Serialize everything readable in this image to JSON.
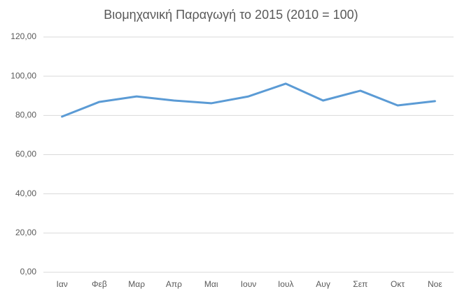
{
  "chart_data": {
    "type": "line",
    "title": "Βιομηχανική Παραγωγή το 2015 (2010 = 100)",
    "categories": [
      "Ιαν",
      "Φεβ",
      "Μαρ",
      "Απρ",
      "Μαι",
      "Ιουν",
      "Ιουλ",
      "Αυγ",
      "Σεπ",
      "Οκτ",
      "Νοε"
    ],
    "values": [
      79.4,
      86.9,
      89.7,
      87.6,
      86.2,
      89.7,
      96.2,
      87.6,
      92.6,
      85.1,
      87.3
    ],
    "color": "#5b9bd5",
    "ylim": [
      0,
      120
    ],
    "yticks": [
      {
        "value": 0,
        "label": "0,00"
      },
      {
        "value": 20,
        "label": "20,00"
      },
      {
        "value": 40,
        "label": "40,00"
      },
      {
        "value": 60,
        "label": "60,00"
      },
      {
        "value": 80,
        "label": "80,00"
      },
      {
        "value": 100,
        "label": "100,00"
      },
      {
        "value": 120,
        "label": "120,00"
      }
    ],
    "grid": true
  }
}
